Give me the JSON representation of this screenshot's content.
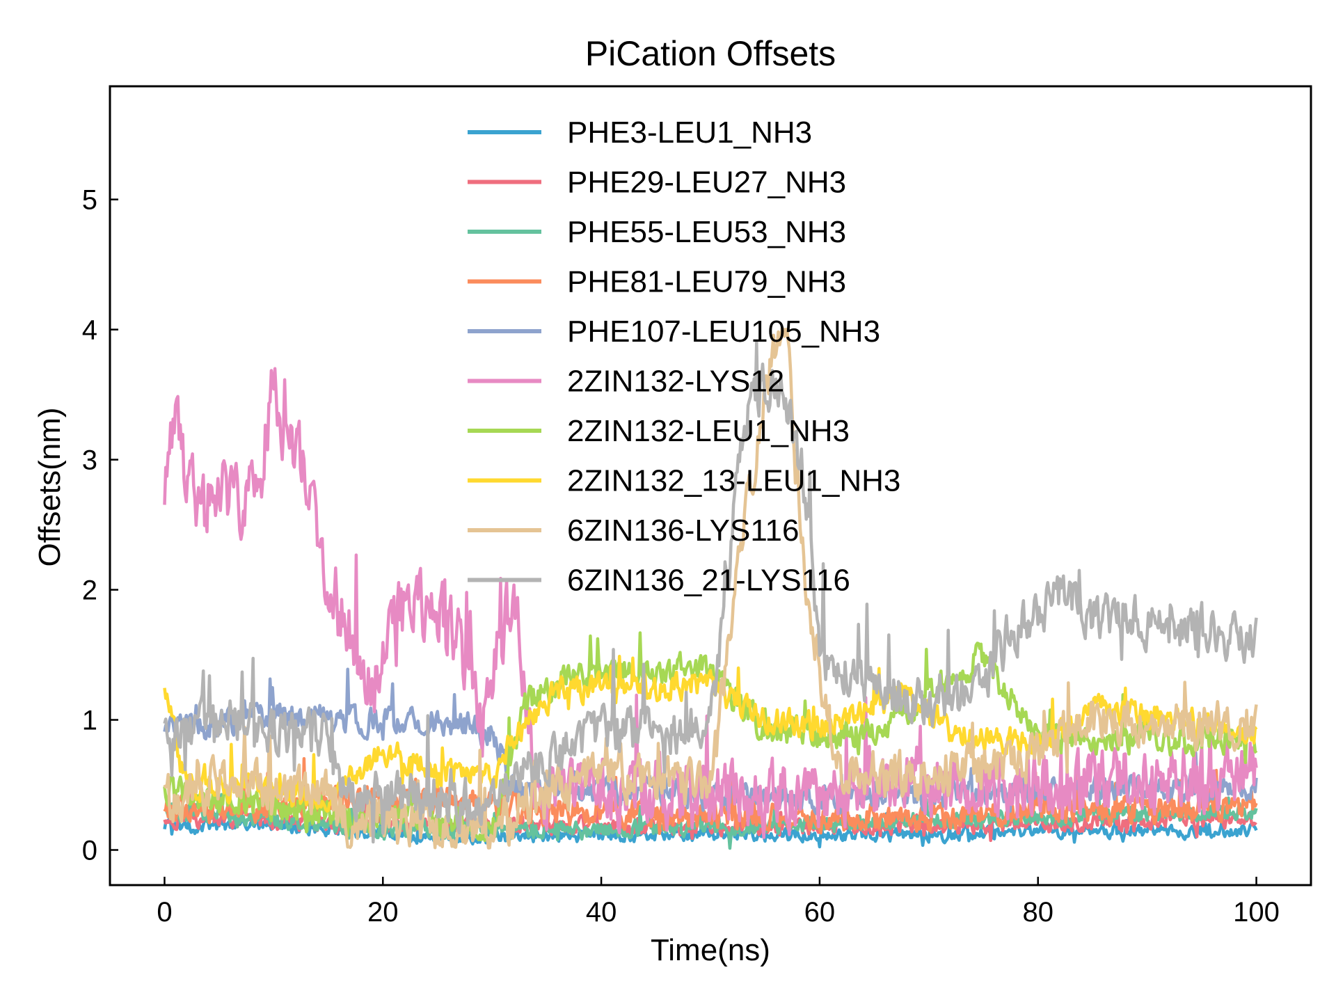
{
  "chart_data": {
    "type": "line",
    "title": "PiCation Offsets",
    "xlabel": "Time(ns)",
    "ylabel": "Offsets(nm)",
    "xlim": [
      -5,
      105
    ],
    "ylim": [
      -0.27,
      5.87
    ],
    "xticks": [
      0,
      20,
      40,
      60,
      80,
      100
    ],
    "yticks": [
      0,
      1,
      2,
      3,
      4,
      5
    ],
    "grid": false,
    "legend_position": "top-center",
    "series": [
      {
        "name": "PHE3-LEU1_NH3",
        "color": "#3BA3D0",
        "knots": [
          [
            0,
            0.18
          ],
          [
            10,
            0.2
          ],
          [
            20,
            0.12
          ],
          [
            30,
            0.1
          ],
          [
            40,
            0.12
          ],
          [
            50,
            0.12
          ],
          [
            60,
            0.12
          ],
          [
            70,
            0.12
          ],
          [
            80,
            0.15
          ],
          [
            90,
            0.15
          ],
          [
            100,
            0.15
          ]
        ],
        "noise": 0.08
      },
      {
        "name": "PHE29-LEU27_NH3",
        "color": "#EF6E7E",
        "knots": [
          [
            0,
            0.25
          ],
          [
            20,
            0.2
          ],
          [
            30,
            0.2
          ],
          [
            40,
            0.18
          ],
          [
            60,
            0.18
          ],
          [
            80,
            0.2
          ],
          [
            100,
            0.25
          ]
        ],
        "noise": 0.1
      },
      {
        "name": "PHE55-LEU53_NH3",
        "color": "#64C29E",
        "knots": [
          [
            0,
            0.3
          ],
          [
            20,
            0.15
          ],
          [
            40,
            0.15
          ],
          [
            60,
            0.2
          ],
          [
            80,
            0.25
          ],
          [
            100,
            0.3
          ]
        ],
        "noise": 0.1
      },
      {
        "name": "PHE81-LEU79_NH3",
        "color": "#FB8C5C",
        "knots": [
          [
            0,
            0.3
          ],
          [
            25,
            0.4
          ],
          [
            35,
            0.3
          ],
          [
            50,
            0.25
          ],
          [
            70,
            0.25
          ],
          [
            100,
            0.35
          ]
        ],
        "noise": 0.16
      },
      {
        "name": "PHE107-LEU105_NH3",
        "color": "#8EA3CD",
        "knots": [
          [
            0,
            0.9
          ],
          [
            10,
            1.05
          ],
          [
            18,
            1.0
          ],
          [
            25,
            1.0
          ],
          [
            30,
            0.9
          ],
          [
            32,
            0.5
          ],
          [
            60,
            0.4
          ],
          [
            80,
            0.45
          ],
          [
            100,
            0.5
          ]
        ],
        "noise": 0.16
      },
      {
        "name": "2ZIN132-LYS12",
        "color": "#E78AC3",
        "knots": [
          [
            0,
            2.6
          ],
          [
            0.8,
            3.3
          ],
          [
            3,
            2.6
          ],
          [
            5,
            2.8
          ],
          [
            7,
            2.6
          ],
          [
            9,
            3.0
          ],
          [
            10,
            3.7
          ],
          [
            11,
            3.1
          ],
          [
            13,
            2.9
          ],
          [
            15,
            2.1
          ],
          [
            17,
            1.7
          ],
          [
            19,
            1.2
          ],
          [
            21,
            1.8
          ],
          [
            25,
            1.9
          ],
          [
            27,
            1.6
          ],
          [
            29,
            0.9
          ],
          [
            30,
            1.4
          ],
          [
            32,
            2.0
          ],
          [
            34,
            0.5
          ],
          [
            50,
            0.4
          ],
          [
            60,
            0.4
          ],
          [
            70,
            0.5
          ],
          [
            80,
            0.5
          ],
          [
            100,
            0.6
          ]
        ],
        "noise": 0.4
      },
      {
        "name": "2ZIN132-LEU1_NH3",
        "color": "#A6D854",
        "knots": [
          [
            0,
            0.45
          ],
          [
            10,
            0.35
          ],
          [
            20,
            0.25
          ],
          [
            30,
            0.2
          ],
          [
            33,
            1.1
          ],
          [
            36,
            1.3
          ],
          [
            40,
            1.35
          ],
          [
            50,
            1.4
          ],
          [
            55,
            0.9
          ],
          [
            65,
            0.9
          ],
          [
            75,
            1.5
          ],
          [
            80,
            0.85
          ],
          [
            100,
            0.85
          ]
        ],
        "noise": 0.18
      },
      {
        "name": "2ZIN132_13-LEU1_NH3",
        "color": "#FFD92F",
        "knots": [
          [
            0,
            1.2
          ],
          [
            2,
            0.5
          ],
          [
            10,
            0.45
          ],
          [
            15,
            0.4
          ],
          [
            20,
            0.75
          ],
          [
            25,
            0.6
          ],
          [
            30,
            0.6
          ],
          [
            33,
            0.95
          ],
          [
            36,
            1.25
          ],
          [
            40,
            1.25
          ],
          [
            50,
            1.25
          ],
          [
            55,
            1.0
          ],
          [
            60,
            0.95
          ],
          [
            68,
            1.2
          ],
          [
            72,
            0.9
          ],
          [
            80,
            0.8
          ],
          [
            85,
            1.1
          ],
          [
            100,
            0.9
          ]
        ],
        "noise": 0.16
      },
      {
        "name": "6ZIN136-LYS116",
        "color": "#E5C494",
        "knots": [
          [
            0,
            0.4
          ],
          [
            5,
            0.5
          ],
          [
            10,
            0.5
          ],
          [
            15,
            0.4
          ],
          [
            17,
            0.2
          ],
          [
            30,
            0.15
          ],
          [
            33,
            0.35
          ],
          [
            40,
            0.6
          ],
          [
            50,
            0.5
          ],
          [
            52,
            1.8
          ],
          [
            55,
            3.6
          ],
          [
            57,
            4.0
          ],
          [
            59,
            1.8
          ],
          [
            62,
            0.6
          ],
          [
            70,
            0.55
          ],
          [
            80,
            0.75
          ],
          [
            85,
            1.0
          ],
          [
            100,
            0.95
          ]
        ],
        "noise": 0.28
      },
      {
        "name": "6ZIN136_21-LYS116",
        "color": "#B3B3B3",
        "knots": [
          [
            0,
            0.85
          ],
          [
            5,
            1.0
          ],
          [
            10,
            0.95
          ],
          [
            15,
            0.9
          ],
          [
            16,
            0.45
          ],
          [
            30,
            0.35
          ],
          [
            33,
            0.6
          ],
          [
            40,
            0.9
          ],
          [
            50,
            0.95
          ],
          [
            51,
            1.6
          ],
          [
            53,
            3.3
          ],
          [
            55,
            3.6
          ],
          [
            57,
            3.4
          ],
          [
            59,
            2.5
          ],
          [
            60,
            1.5
          ],
          [
            70,
            1.1
          ],
          [
            75,
            1.2
          ],
          [
            77,
            1.6
          ],
          [
            82,
            2.0
          ],
          [
            85,
            1.8
          ],
          [
            100,
            1.65
          ]
        ],
        "noise": 0.28
      }
    ]
  }
}
